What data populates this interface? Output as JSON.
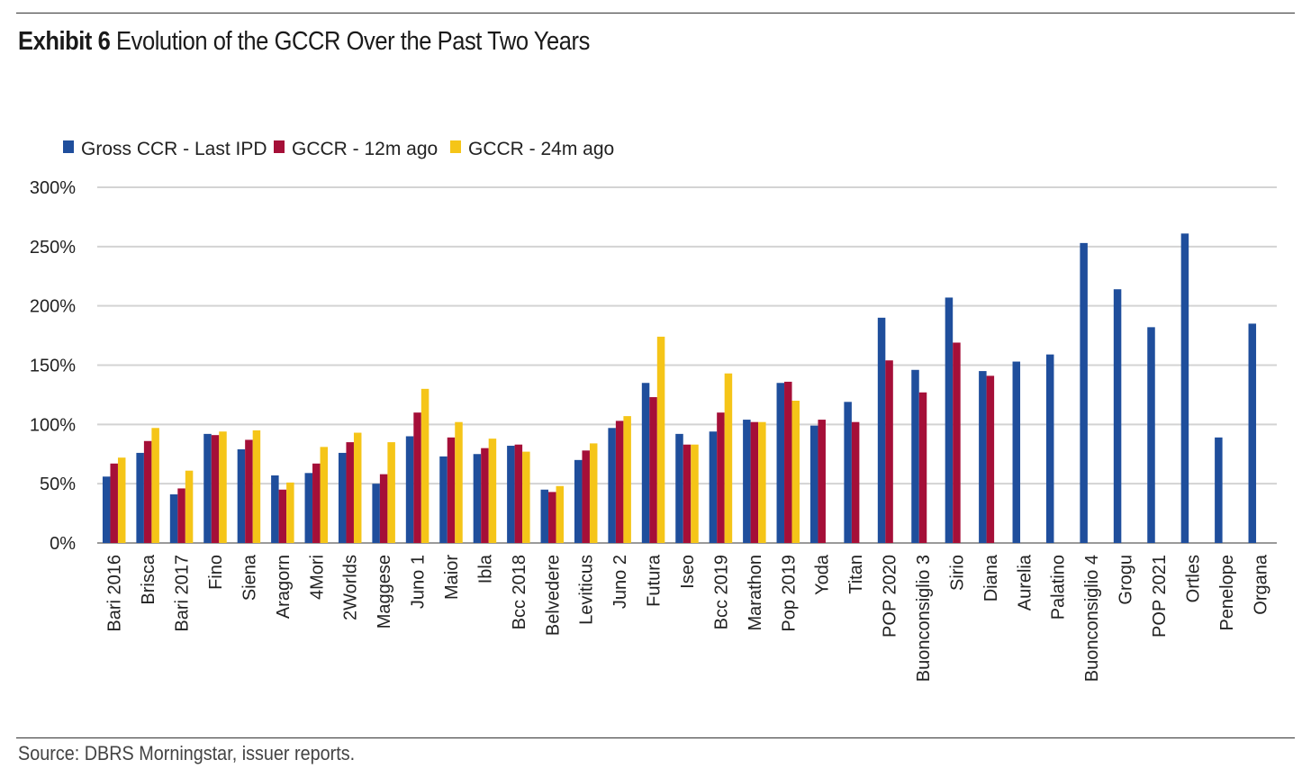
{
  "header": {
    "exhibit_label": "Exhibit 6",
    "title": "Evolution of the GCCR Over the Past Two Years"
  },
  "footer": {
    "source": "Source: DBRS Morningstar, issuer reports."
  },
  "chart_data": {
    "type": "bar",
    "title": "Evolution of the GCCR Over the Past Two Years",
    "xlabel": "",
    "ylabel": "",
    "ylim": [
      0,
      300
    ],
    "y_ticks": [
      "0%",
      "50%",
      "100%",
      "150%",
      "200%",
      "250%",
      "300%"
    ],
    "y_tick_values": [
      0,
      50,
      100,
      150,
      200,
      250,
      300
    ],
    "grid": true,
    "legend_position": "top-left",
    "categories": [
      "Bari 2016",
      "Brisca",
      "Bari 2017",
      "Fino",
      "Siena",
      "Aragorn",
      "4Mori",
      "2Worlds",
      "Maggese",
      "Juno 1",
      "Maior",
      "Ibla",
      "Bcc 2018",
      "Belvedere",
      "Leviticus",
      "Juno 2",
      "Futura",
      "Iseo",
      "Bcc 2019",
      "Marathon",
      "Pop 2019",
      "Yoda",
      "Titan",
      "POP 2020",
      "Buonconsiglio 3",
      "Sirio",
      "Diana",
      "Aurelia",
      "Palatino",
      "Buonconsiglio 4",
      "Grogu",
      "POP 2021",
      "Ortles",
      "Penelope",
      "Organa"
    ],
    "series": [
      {
        "name": "Gross CCR - Last IPD",
        "color": "#1f4e9c",
        "values": [
          56,
          76,
          41,
          92,
          79,
          57,
          59,
          76,
          50,
          90,
          73,
          75,
          82,
          45,
          70,
          97,
          135,
          92,
          94,
          104,
          135,
          99,
          119,
          190,
          146,
          207,
          145,
          153,
          159,
          253,
          214,
          182,
          261,
          89,
          185
        ]
      },
      {
        "name": "GCCR - 12m ago",
        "color": "#a50f38",
        "values": [
          67,
          86,
          46,
          91,
          87,
          45,
          67,
          85,
          58,
          110,
          89,
          80,
          83,
          43,
          78,
          103,
          123,
          83,
          110,
          102,
          136,
          104,
          102,
          154,
          127,
          169,
          141,
          null,
          null,
          null,
          null,
          null,
          null,
          null,
          null
        ]
      },
      {
        "name": "GCCR - 24m ago",
        "color": "#f5c518",
        "values": [
          72,
          97,
          61,
          94,
          95,
          51,
          81,
          93,
          85,
          130,
          102,
          88,
          77,
          48,
          84,
          107,
          174,
          83,
          143,
          102,
          120,
          null,
          null,
          null,
          null,
          null,
          null,
          null,
          null,
          null,
          null,
          null,
          null,
          null,
          null
        ]
      }
    ]
  }
}
